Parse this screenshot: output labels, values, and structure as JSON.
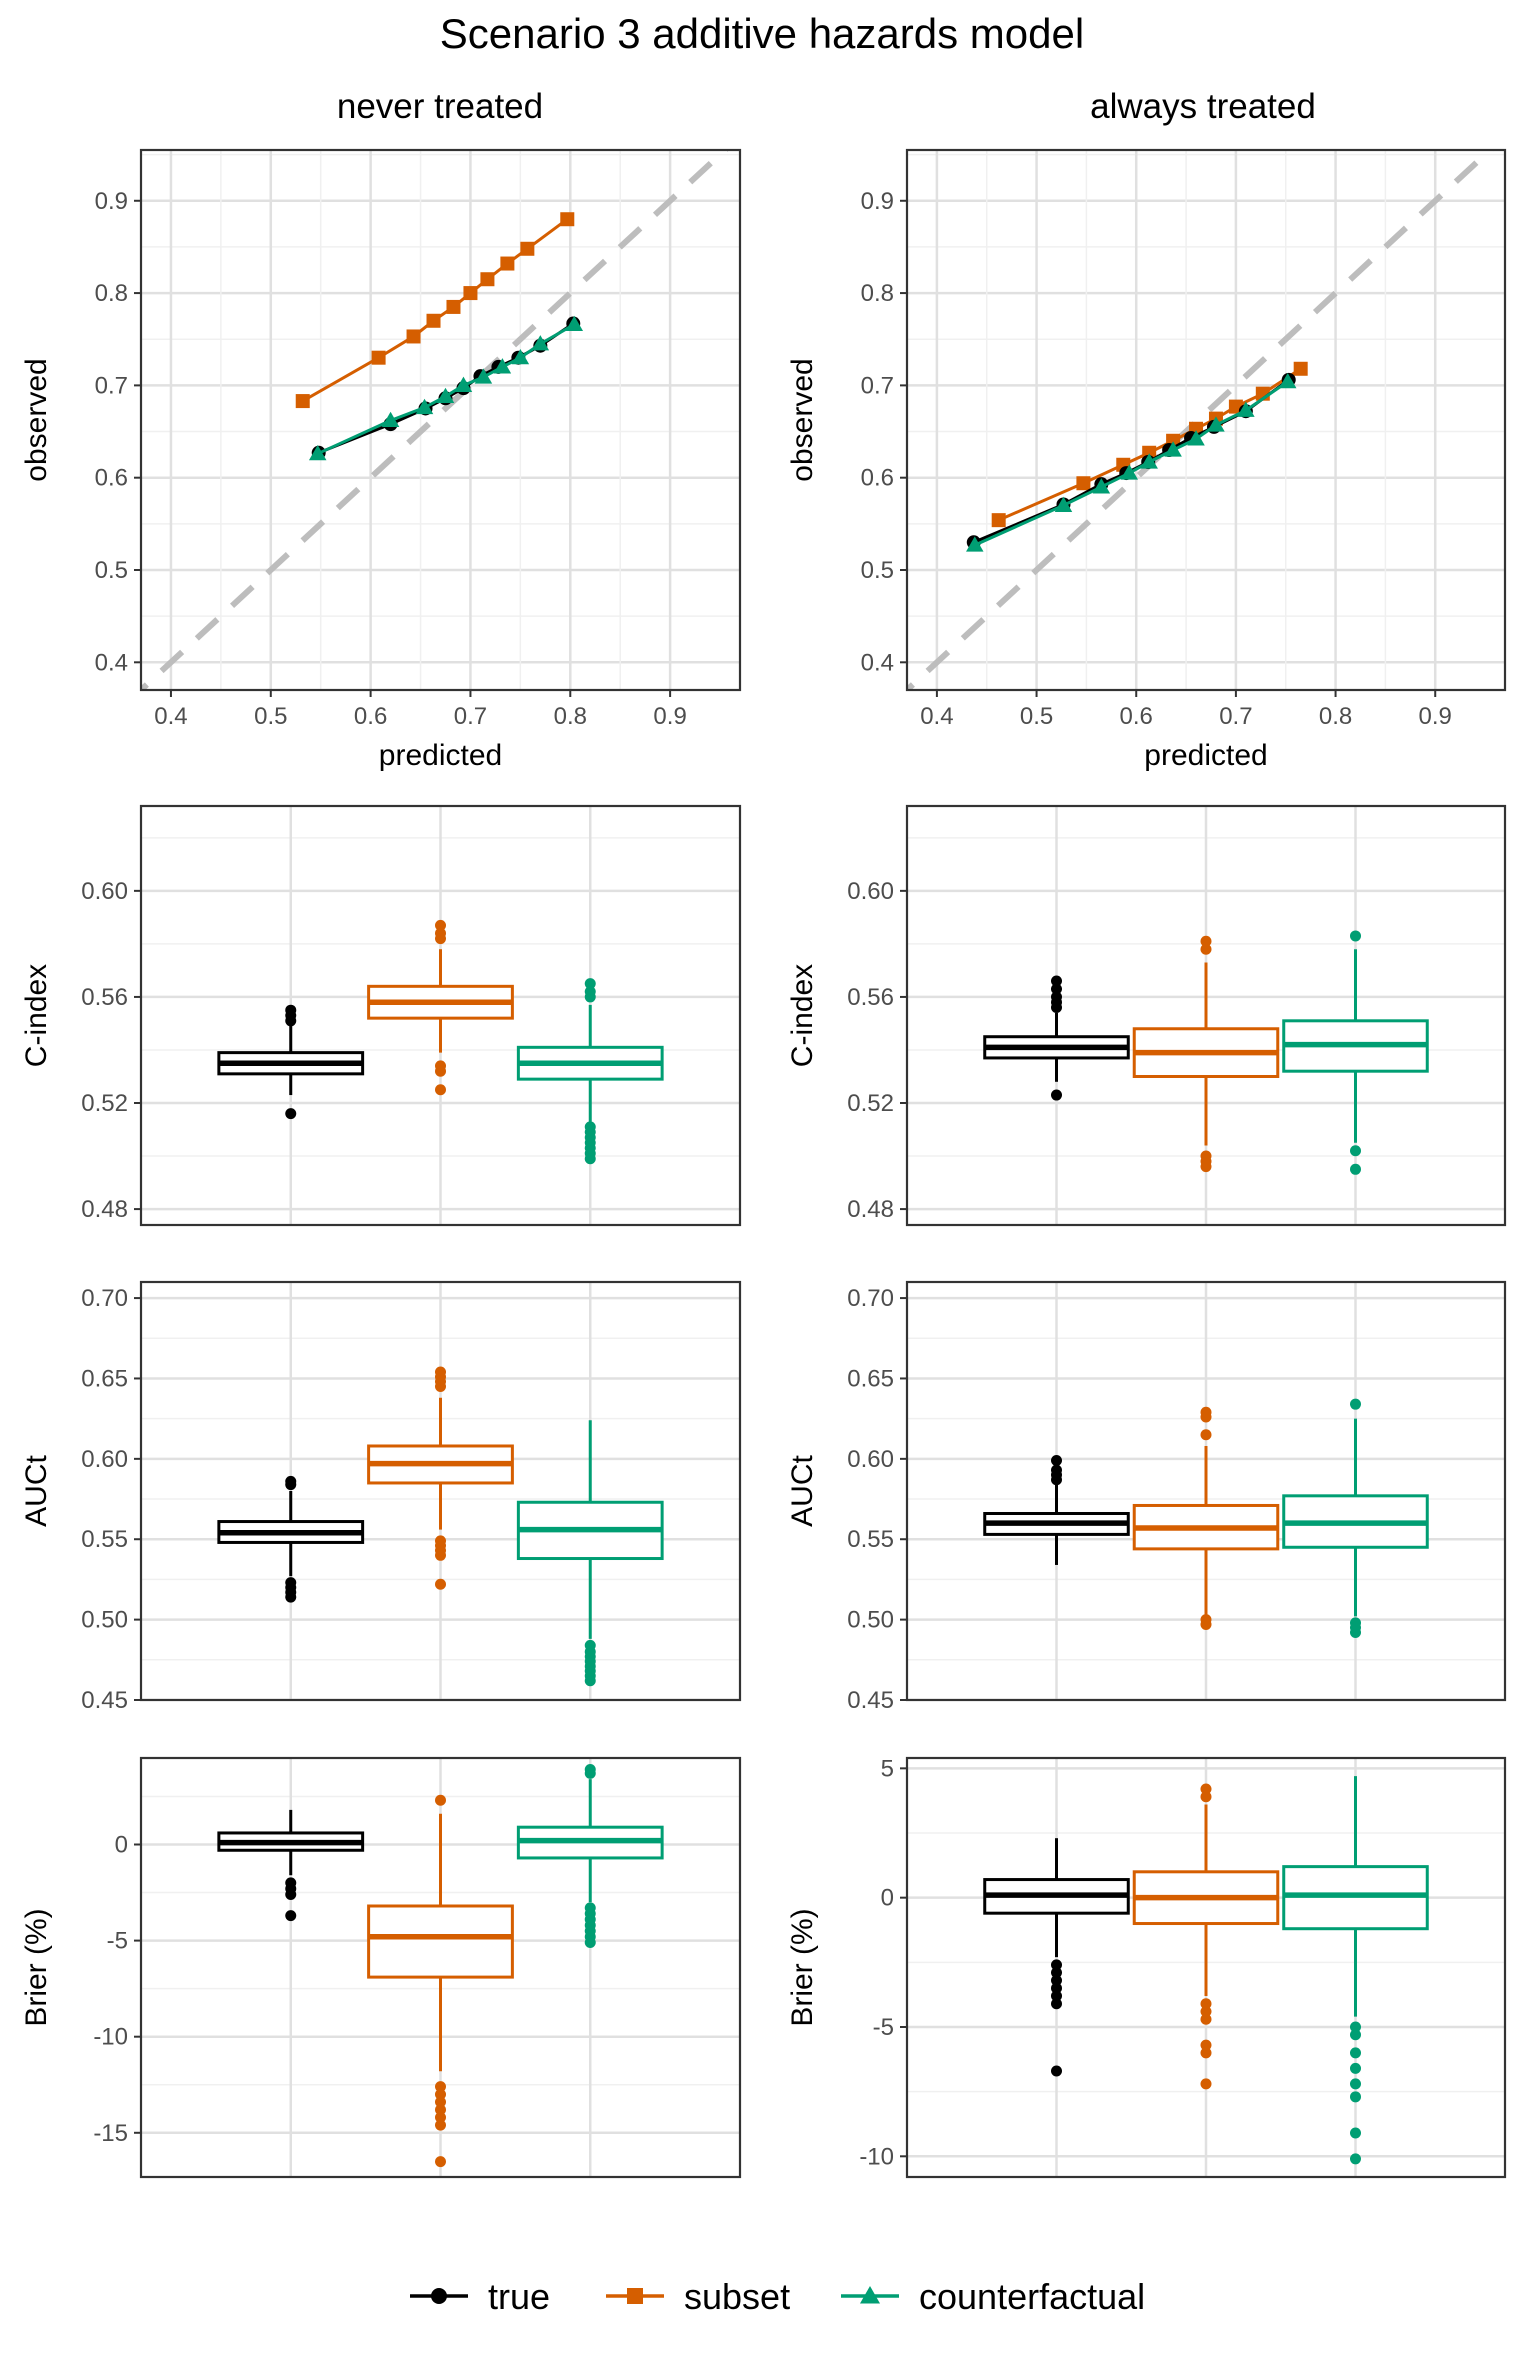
{
  "figure_title": "Scenario 3 additive hazards model",
  "column_titles": [
    "never treated",
    "always treated"
  ],
  "legend": {
    "position": "bottom",
    "entries": [
      {
        "name": "true",
        "color": "#000000",
        "marker": "circle"
      },
      {
        "name": "subset",
        "color": "#D55E00",
        "marker": "square"
      },
      {
        "name": "counterfactual",
        "color": "#009E73",
        "marker": "triangle"
      }
    ]
  },
  "chart_data": [
    {
      "type": "line",
      "panel": "calibration",
      "column": "never treated",
      "xlabel": "predicted",
      "ylabel": "observed",
      "xlim": [
        0.37,
        0.97
      ],
      "ylim": [
        0.37,
        0.955
      ],
      "xticks": [
        "0.4",
        "0.5",
        "0.6",
        "0.7",
        "0.8",
        "0.9"
      ],
      "yticks": [
        "0.4",
        "0.5",
        "0.6",
        "0.7",
        "0.8",
        "0.9"
      ],
      "reference_line": "y = x",
      "series": [
        {
          "name": "true",
          "x": [
            0.548,
            0.62,
            0.655,
            0.675,
            0.693,
            0.71,
            0.728,
            0.748,
            0.77,
            0.803
          ],
          "y": [
            0.627,
            0.658,
            0.675,
            0.686,
            0.697,
            0.71,
            0.72,
            0.73,
            0.743,
            0.767
          ]
        },
        {
          "name": "subset",
          "x": [
            0.532,
            0.608,
            0.643,
            0.663,
            0.683,
            0.7,
            0.717,
            0.737,
            0.757,
            0.797
          ],
          "y": [
            0.683,
            0.73,
            0.753,
            0.77,
            0.785,
            0.8,
            0.815,
            0.832,
            0.848,
            0.88
          ]
        },
        {
          "name": "counterfactual",
          "x": [
            0.547,
            0.62,
            0.654,
            0.675,
            0.693,
            0.713,
            0.732,
            0.75,
            0.77,
            0.804
          ],
          "y": [
            0.626,
            0.662,
            0.676,
            0.688,
            0.7,
            0.709,
            0.72,
            0.73,
            0.745,
            0.766
          ]
        }
      ]
    },
    {
      "type": "line",
      "panel": "calibration",
      "column": "always treated",
      "xlabel": "predicted",
      "ylabel": "observed",
      "xlim": [
        0.37,
        0.97
      ],
      "ylim": [
        0.37,
        0.955
      ],
      "xticks": [
        "0.4",
        "0.5",
        "0.6",
        "0.7",
        "0.8",
        "0.9"
      ],
      "yticks": [
        "0.4",
        "0.5",
        "0.6",
        "0.7",
        "0.8",
        "0.9"
      ],
      "reference_line": "y = x",
      "series": [
        {
          "name": "true",
          "x": [
            0.437,
            0.527,
            0.565,
            0.59,
            0.612,
            0.633,
            0.655,
            0.678,
            0.71,
            0.753
          ],
          "y": [
            0.53,
            0.571,
            0.593,
            0.605,
            0.617,
            0.63,
            0.643,
            0.655,
            0.672,
            0.706
          ]
        },
        {
          "name": "subset",
          "x": [
            0.462,
            0.547,
            0.587,
            0.613,
            0.637,
            0.66,
            0.68,
            0.7,
            0.727,
            0.765
          ],
          "y": [
            0.554,
            0.594,
            0.614,
            0.627,
            0.64,
            0.653,
            0.664,
            0.677,
            0.691,
            0.718
          ]
        },
        {
          "name": "counterfactual",
          "x": [
            0.438,
            0.527,
            0.565,
            0.593,
            0.613,
            0.637,
            0.66,
            0.68,
            0.71,
            0.752
          ],
          "y": [
            0.527,
            0.57,
            0.59,
            0.605,
            0.617,
            0.63,
            0.642,
            0.657,
            0.673,
            0.704
          ]
        }
      ]
    },
    {
      "type": "boxplot",
      "panel": "cindex",
      "column": "never treated",
      "ylabel": "C-index",
      "ylim": [
        0.474,
        0.632
      ],
      "yticks": [
        "0.48",
        "0.52",
        "0.56",
        "0.60"
      ],
      "boxes": [
        {
          "name": "true",
          "whisker_low": 0.523,
          "q1": 0.531,
          "median": 0.535,
          "q3": 0.539,
          "whisker_high": 0.55,
          "outliers": [
            0.516,
            0.551,
            0.553,
            0.555
          ]
        },
        {
          "name": "subset",
          "whisker_low": 0.539,
          "q1": 0.552,
          "median": 0.558,
          "q3": 0.564,
          "whisker_high": 0.578,
          "outliers": [
            0.525,
            0.532,
            0.534,
            0.582,
            0.584,
            0.587
          ]
        },
        {
          "name": "counterfactual",
          "whisker_low": 0.513,
          "q1": 0.529,
          "median": 0.535,
          "q3": 0.541,
          "whisker_high": 0.557,
          "outliers": [
            0.499,
            0.501,
            0.503,
            0.505,
            0.507,
            0.509,
            0.511,
            0.56,
            0.562,
            0.565
          ]
        }
      ]
    },
    {
      "type": "boxplot",
      "panel": "cindex",
      "column": "always treated",
      "ylabel": "C-index",
      "ylim": [
        0.474,
        0.632
      ],
      "yticks": [
        "0.48",
        "0.52",
        "0.56",
        "0.60"
      ],
      "boxes": [
        {
          "name": "true",
          "whisker_low": 0.528,
          "q1": 0.537,
          "median": 0.541,
          "q3": 0.545,
          "whisker_high": 0.554,
          "outliers": [
            0.523,
            0.556,
            0.558,
            0.56,
            0.563,
            0.566
          ]
        },
        {
          "name": "subset",
          "whisker_low": 0.504,
          "q1": 0.53,
          "median": 0.539,
          "q3": 0.548,
          "whisker_high": 0.573,
          "outliers": [
            0.496,
            0.498,
            0.5,
            0.578,
            0.581
          ]
        },
        {
          "name": "counterfactual",
          "whisker_low": 0.505,
          "q1": 0.532,
          "median": 0.542,
          "q3": 0.551,
          "whisker_high": 0.578,
          "outliers": [
            0.495,
            0.502,
            0.583
          ]
        }
      ]
    },
    {
      "type": "boxplot",
      "panel": "auct",
      "column": "never treated",
      "ylabel": "AUCt",
      "ylim": [
        0.45,
        0.71
      ],
      "yticks": [
        "0.45",
        "0.50",
        "0.55",
        "0.60",
        "0.65",
        "0.70"
      ],
      "boxes": [
        {
          "name": "true",
          "whisker_low": 0.527,
          "q1": 0.548,
          "median": 0.554,
          "q3": 0.561,
          "whisker_high": 0.58,
          "outliers": [
            0.514,
            0.517,
            0.52,
            0.523,
            0.584,
            0.586
          ]
        },
        {
          "name": "subset",
          "whisker_low": 0.556,
          "q1": 0.585,
          "median": 0.597,
          "q3": 0.608,
          "whisker_high": 0.638,
          "outliers": [
            0.522,
            0.54,
            0.543,
            0.546,
            0.549,
            0.645,
            0.648,
            0.651,
            0.654
          ]
        },
        {
          "name": "counterfactual",
          "whisker_low": 0.488,
          "q1": 0.538,
          "median": 0.556,
          "q3": 0.573,
          "whisker_high": 0.624,
          "outliers": [
            0.462,
            0.465,
            0.468,
            0.471,
            0.474,
            0.477,
            0.48,
            0.484
          ]
        }
      ]
    },
    {
      "type": "boxplot",
      "panel": "auct",
      "column": "always treated",
      "ylabel": "AUCt",
      "ylim": [
        0.45,
        0.71
      ],
      "yticks": [
        "0.45",
        "0.50",
        "0.55",
        "0.60",
        "0.65",
        "0.70"
      ],
      "boxes": [
        {
          "name": "true",
          "whisker_low": 0.534,
          "q1": 0.553,
          "median": 0.56,
          "q3": 0.566,
          "whisker_high": 0.584,
          "outliers": [
            0.587,
            0.59,
            0.593,
            0.599
          ]
        },
        {
          "name": "subset",
          "whisker_low": 0.503,
          "q1": 0.544,
          "median": 0.557,
          "q3": 0.571,
          "whisker_high": 0.608,
          "outliers": [
            0.497,
            0.5,
            0.615,
            0.626,
            0.629
          ]
        },
        {
          "name": "counterfactual",
          "whisker_low": 0.502,
          "q1": 0.545,
          "median": 0.56,
          "q3": 0.577,
          "whisker_high": 0.625,
          "outliers": [
            0.492,
            0.495,
            0.498,
            0.634
          ]
        }
      ]
    },
    {
      "type": "boxplot",
      "panel": "brier",
      "column": "never treated",
      "ylabel": "Brier (%)",
      "ylim": [
        -17.3,
        4.5
      ],
      "yticks": [
        "-15",
        "-10",
        "-5",
        "0"
      ],
      "boxes": [
        {
          "name": "true",
          "whisker_low": -1.6,
          "q1": -0.3,
          "median": 0.1,
          "q3": 0.6,
          "whisker_high": 1.8,
          "outliers": [
            -3.7,
            -2.6,
            -2.3,
            -2.0
          ]
        },
        {
          "name": "subset",
          "whisker_low": -11.8,
          "q1": -6.9,
          "median": -4.8,
          "q3": -3.2,
          "whisker_high": 1.6,
          "outliers": [
            -16.5,
            -14.6,
            -14.2,
            -13.8,
            -13.4,
            -13.0,
            -12.6,
            2.3
          ]
        },
        {
          "name": "counterfactual",
          "whisker_low": -3.0,
          "q1": -0.7,
          "median": 0.2,
          "q3": 0.9,
          "whisker_high": 3.4,
          "outliers": [
            -5.1,
            -4.8,
            -4.5,
            -4.2,
            -3.9,
            -3.6,
            -3.3,
            3.7,
            3.9
          ]
        }
      ]
    },
    {
      "type": "boxplot",
      "panel": "brier",
      "column": "always treated",
      "ylabel": "Brier (%)",
      "ylim": [
        -10.8,
        5.4
      ],
      "yticks": [
        "-10",
        "-5",
        "0",
        "5"
      ],
      "boxes": [
        {
          "name": "true",
          "whisker_low": -2.3,
          "q1": -0.6,
          "median": 0.1,
          "q3": 0.7,
          "whisker_high": 2.3,
          "outliers": [
            -6.7,
            -4.1,
            -3.8,
            -3.5,
            -3.2,
            -2.9,
            -2.6
          ]
        },
        {
          "name": "subset",
          "whisker_low": -3.8,
          "q1": -1.0,
          "median": 0.0,
          "q3": 1.0,
          "whisker_high": 3.6,
          "outliers": [
            -7.2,
            -6.0,
            -5.7,
            -4.7,
            -4.4,
            -4.1,
            3.9,
            4.2
          ]
        },
        {
          "name": "counterfactual",
          "whisker_low": -4.6,
          "q1": -1.2,
          "median": 0.1,
          "q3": 1.2,
          "whisker_high": 4.7,
          "outliers": [
            -10.1,
            -9.1,
            -7.7,
            -7.2,
            -6.6,
            -6.0,
            -5.3,
            -5.0
          ]
        }
      ]
    }
  ]
}
